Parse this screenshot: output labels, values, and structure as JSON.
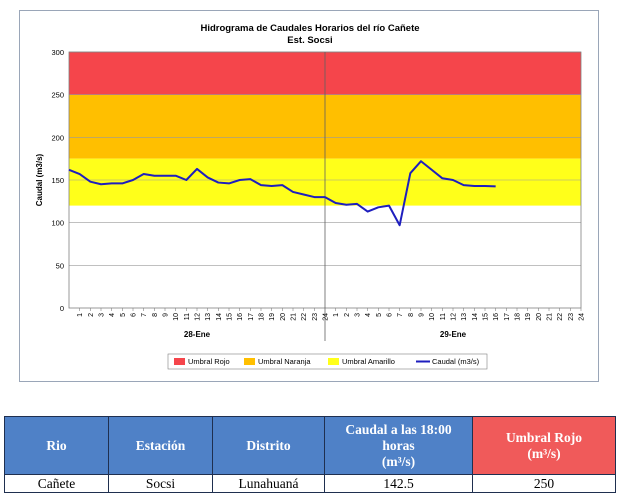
{
  "chart_data": {
    "type": "line",
    "title": "Hidrograma de Caudales Horarios del río Cañete",
    "subtitle": "Est. Socsi",
    "ylabel": "Caudal  (m3/s)",
    "ylim": [
      0,
      300
    ],
    "yticks": [
      "0",
      "50",
      "100",
      "150",
      "200",
      "250",
      "300"
    ],
    "x_tick_labels": [
      "1",
      "2",
      "3",
      "4",
      "5",
      "6",
      "7",
      "8",
      "9",
      "10",
      "11",
      "12",
      "13",
      "14",
      "15",
      "16",
      "17",
      "18",
      "19",
      "20",
      "21",
      "22",
      "23",
      "24"
    ],
    "days": [
      "28-Ene",
      "29-Ene"
    ],
    "thresholds": [
      {
        "name": "Umbral Rojo",
        "from": 250,
        "to": 300,
        "color": "#f5454b"
      },
      {
        "name": "Umbral Naranja",
        "from": 175,
        "to": 250,
        "color": "#ffbf00"
      },
      {
        "name": "Umbral Amarillo",
        "from": 120,
        "to": 175,
        "color": "#ffff1a"
      }
    ],
    "series": [
      {
        "name": "Caudal (m3/s)",
        "color": "#1e1ebe",
        "values": [
          162,
          157,
          148,
          145,
          146,
          146,
          150,
          157,
          155,
          155,
          155,
          150,
          163,
          153,
          147,
          146,
          150,
          151,
          144,
          143,
          144,
          136,
          133,
          130,
          130,
          123,
          121,
          122,
          113,
          118,
          120,
          97,
          158,
          172,
          162,
          152,
          150,
          144,
          143,
          143,
          142.5
        ]
      }
    ],
    "legend": {
      "position": "bottom",
      "items": [
        {
          "label": "Umbral Rojo",
          "color": "#f5454b",
          "kind": "box"
        },
        {
          "label": "Umbral Naranja",
          "color": "#ffbf00",
          "kind": "box"
        },
        {
          "label": "Umbral Amarillo",
          "color": "#ffff1a",
          "kind": "box"
        },
        {
          "label": "Caudal (m3/s)",
          "color": "#1e1ebe",
          "kind": "line"
        }
      ]
    }
  },
  "table": {
    "headers": [
      "Rio",
      "Estación",
      "Distrito",
      "Caudal a las 18:00 horas",
      "Umbral Rojo"
    ],
    "caudal_unit": "(m³/s)",
    "umbral_unit": "(m³/s)",
    "row": [
      "Cañete",
      "Socsi",
      "Lunahuaná",
      "142.5",
      "250"
    ]
  }
}
